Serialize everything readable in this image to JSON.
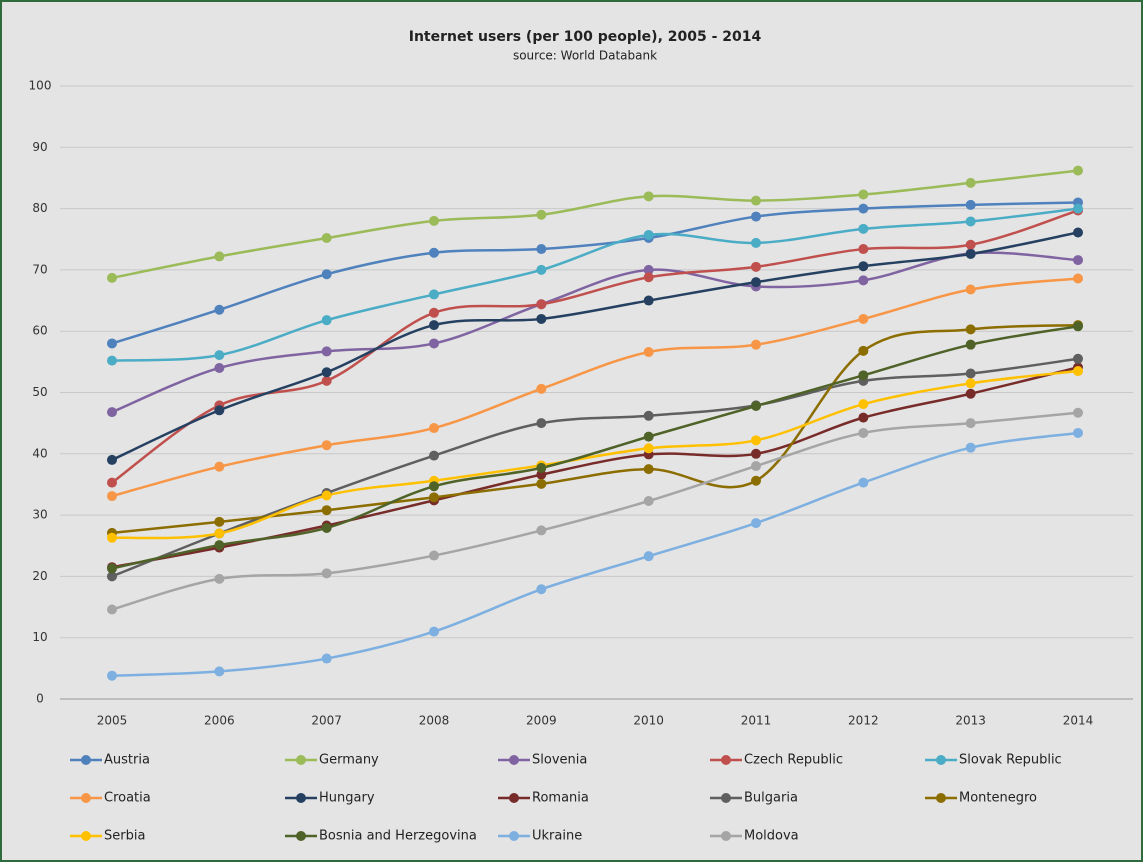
{
  "chart_data": {
    "type": "line",
    "title": "Internet users (per 100 people), 2005 - 2014",
    "subtitle": "source: World Databank",
    "categories": [
      "2005",
      "2006",
      "2007",
      "2008",
      "2009",
      "2010",
      "2011",
      "2012",
      "2013",
      "2014"
    ],
    "ylim": [
      0,
      100
    ],
    "yticks": [
      0,
      10,
      20,
      30,
      40,
      50,
      60,
      70,
      80,
      90,
      100
    ],
    "grid": true,
    "legend": "bottom",
    "smooth": true,
    "series": [
      {
        "name": "Austria",
        "color": "#4f81bd",
        "values": [
          58,
          63.5,
          69.3,
          72.8,
          73.4,
          75.2,
          78.7,
          80,
          80.6,
          81
        ]
      },
      {
        "name": "Germany",
        "color": "#9bbb59",
        "values": [
          68.7,
          72.2,
          75.2,
          78,
          79,
          82,
          81.3,
          82.3,
          84.2,
          86.2
        ]
      },
      {
        "name": "Slovenia",
        "color": "#8064a2",
        "values": [
          46.8,
          54,
          56.7,
          58,
          64.4,
          70,
          67.3,
          68.3,
          72.7,
          71.6
        ]
      },
      {
        "name": "Czech Republic",
        "color": "#c0504d",
        "values": [
          35.3,
          47.9,
          51.9,
          63,
          64.4,
          68.8,
          70.5,
          73.4,
          74.1,
          79.7
        ]
      },
      {
        "name": "Slovak Republic",
        "color": "#4bacc6",
        "values": [
          55.2,
          56.1,
          61.8,
          66,
          70,
          75.7,
          74.4,
          76.7,
          77.9,
          80
        ]
      },
      {
        "name": "Croatia",
        "color": "#f79646",
        "values": [
          33.1,
          37.9,
          41.4,
          44.2,
          50.6,
          56.6,
          57.8,
          62,
          66.8,
          68.6
        ]
      },
      {
        "name": "Hungary",
        "color": "#254061",
        "values": [
          39,
          47.1,
          53.3,
          61,
          62,
          65,
          68,
          70.6,
          72.6,
          76.1
        ]
      },
      {
        "name": "Romania",
        "color": "#772c2a",
        "values": [
          21.5,
          24.7,
          28.3,
          32.4,
          36.6,
          39.9,
          40,
          45.9,
          49.8,
          54.1
        ]
      },
      {
        "name": "Bulgaria",
        "color": "#5f5f5f",
        "values": [
          20,
          27,
          33.6,
          39.7,
          45,
          46.2,
          47.9,
          51.9,
          53.1,
          55.5
        ]
      },
      {
        "name": "Montenegro",
        "color": "#8c6d00",
        "values": [
          27.1,
          28.9,
          30.8,
          32.9,
          35.1,
          37.5,
          35.6,
          56.8,
          60.3,
          61
        ]
      },
      {
        "name": "Serbia",
        "color": "#ffc000",
        "values": [
          26.3,
          27,
          33.2,
          35.6,
          38.1,
          40.9,
          42.2,
          48.1,
          51.5,
          53.5
        ]
      },
      {
        "name": "Bosnia and Herzegovina",
        "color": "#4f6228",
        "values": [
          21.3,
          25.1,
          27.9,
          34.7,
          37.7,
          42.8,
          47.8,
          52.8,
          57.8,
          60.8
        ]
      },
      {
        "name": "Ukraine",
        "color": "#7db0e0",
        "values": [
          3.8,
          4.5,
          6.6,
          11,
          17.9,
          23.3,
          28.7,
          35.3,
          41,
          43.4
        ]
      },
      {
        "name": "Moldova",
        "color": "#a5a5a5",
        "values": [
          14.6,
          19.6,
          20.5,
          23.4,
          27.5,
          32.3,
          38,
          43.4,
          45,
          46.7
        ]
      }
    ]
  }
}
